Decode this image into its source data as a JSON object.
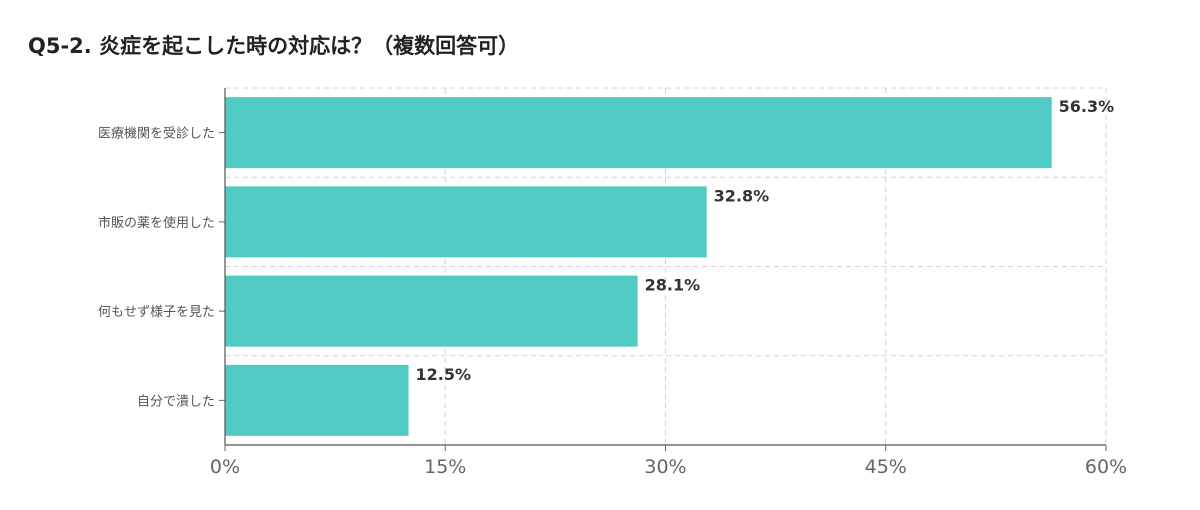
{
  "title": "Q5-2. 炎症を起こした時の対応は？（複数回答可）",
  "chart_data": {
    "type": "bar",
    "orientation": "horizontal",
    "categories": [
      "医療機関を受診した",
      "市販の薬を使用した",
      "何もせず様子を見た",
      "自分で潰した"
    ],
    "values": [
      56.3,
      32.8,
      28.1,
      12.5
    ],
    "value_labels": [
      "56.3%",
      "32.8%",
      "28.1%",
      "12.5%"
    ],
    "xlim": [
      0,
      60
    ],
    "xticks": [
      0,
      15,
      30,
      45,
      60
    ],
    "xtick_labels": [
      "0%",
      "15%",
      "30%",
      "45%",
      "60%"
    ],
    "grid": true,
    "bar_color": "#50CBC3"
  }
}
